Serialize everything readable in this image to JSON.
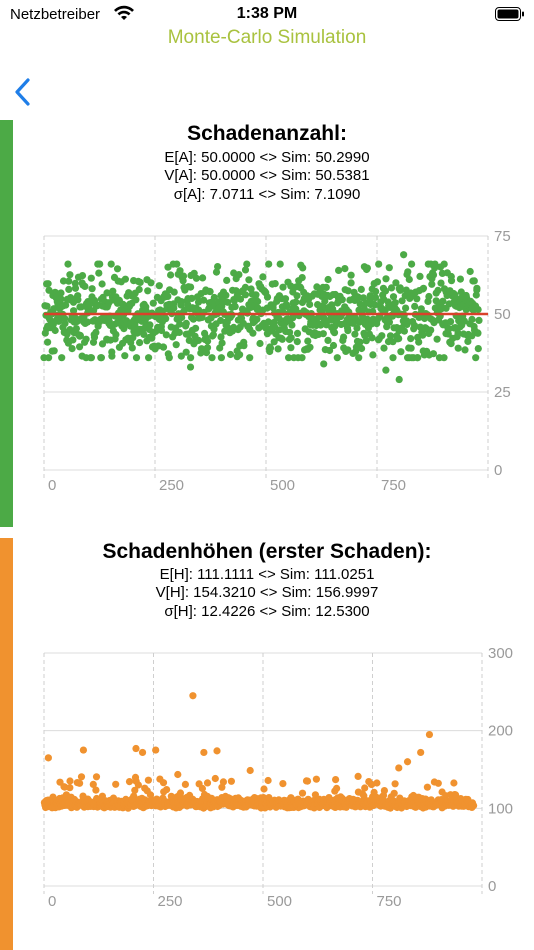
{
  "status_bar": {
    "carrier": "Netzbetreiber",
    "time": "1:38 PM"
  },
  "nav": {
    "title": "Monte-Carlo Simulation",
    "back_icon": "chevron-left-icon"
  },
  "colors": {
    "accent_green": "#4caa46",
    "accent_orange": "#f0922f",
    "mean_line": "#d9412a",
    "title_green": "#a9c23f",
    "back_blue": "#1f7ee8"
  },
  "panels": [
    {
      "title": "Schadenanzahl:",
      "stats": [
        "E[A]: 50.0000 <> Sim: 50.2990",
        "V[A]: 50.0000 <> Sim: 50.5381",
        "σ[A]: 7.0711 <> Sim: 7.1090"
      ]
    },
    {
      "title": "Schadenhöhen (erster Schaden):",
      "stats": [
        "E[H]: 111.1111 <> Sim: 111.0251",
        "V[H]: 154.3210 <> Sim: 156.9997",
        "σ[H]: 12.4226 <> Sim: 12.5300"
      ]
    }
  ],
  "chart_data": [
    {
      "type": "scatter",
      "color": "#4caa46",
      "xlim": [
        0,
        1000
      ],
      "ylim": [
        0,
        75
      ],
      "xticks": [
        "0",
        "250",
        "500",
        "750"
      ],
      "xtick_values": [
        0,
        250,
        500,
        750
      ],
      "yticks": [
        "0",
        "25",
        "50",
        "75"
      ],
      "ytick_values": [
        0,
        25,
        50,
        75
      ],
      "reference_line": {
        "y": 50,
        "color": "#d9412a"
      },
      "n_points": 1000,
      "distribution": {
        "mean": 50.299,
        "sd": 7.109
      },
      "outliers": [
        {
          "x": 800,
          "y": 29
        },
        {
          "x": 810,
          "y": 69
        },
        {
          "x": 770,
          "y": 32
        },
        {
          "x": 630,
          "y": 34
        },
        {
          "x": 330,
          "y": 33
        }
      ]
    },
    {
      "type": "scatter",
      "color": "#f0922f",
      "xlim": [
        0,
        1000
      ],
      "ylim": [
        0,
        300
      ],
      "xticks": [
        "0",
        "250",
        "500",
        "750"
      ],
      "xtick_values": [
        0,
        250,
        500,
        750
      ],
      "yticks": [
        "0",
        "100",
        "200",
        "300"
      ],
      "ytick_values": [
        0,
        100,
        200,
        300
      ],
      "n_points": 1000,
      "distribution": {
        "mean": 111.0251,
        "sd": 12.53,
        "min": 100
      },
      "outliers": [
        {
          "x": 340,
          "y": 245
        },
        {
          "x": 880,
          "y": 195
        },
        {
          "x": 10,
          "y": 165
        },
        {
          "x": 90,
          "y": 175
        },
        {
          "x": 210,
          "y": 177
        },
        {
          "x": 225,
          "y": 172
        },
        {
          "x": 255,
          "y": 175
        },
        {
          "x": 365,
          "y": 172
        },
        {
          "x": 395,
          "y": 174
        },
        {
          "x": 860,
          "y": 172
        },
        {
          "x": 830,
          "y": 160
        },
        {
          "x": 810,
          "y": 152
        }
      ]
    }
  ]
}
